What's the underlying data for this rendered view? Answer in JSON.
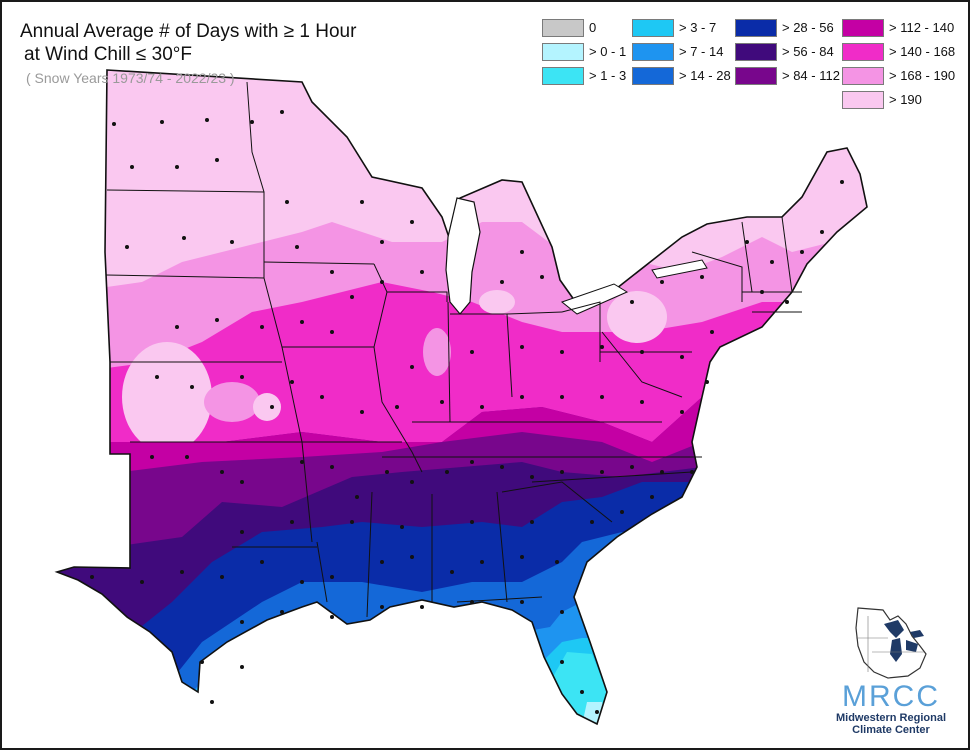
{
  "title": {
    "line1": "Annual Average # of Days with ≥ 1 Hour",
    "line2": "at Wind Chill ≤ 30°F",
    "subtitle": "( Snow Years 1973/74 - 2022/23 )"
  },
  "legend": {
    "items": [
      {
        "label": "0",
        "color": "#c8c8c8"
      },
      {
        "label": "> 0 - 1",
        "color": "#b4f4ff"
      },
      {
        "label": "> 1 - 3",
        "color": "#3ce4f4"
      },
      {
        "label": "> 3 - 7",
        "color": "#1ec8f4"
      },
      {
        "label": "> 7 - 14",
        "color": "#1e94f0"
      },
      {
        "label": "> 14 - 28",
        "color": "#1468d8"
      },
      {
        "label": "> 28 - 56",
        "color": "#0a2ca8"
      },
      {
        "label": "> 56 - 84",
        "color": "#400a7c"
      },
      {
        "label": "> 84 - 112",
        "color": "#78068c"
      },
      {
        "label": "> 112 - 140",
        "color": "#c400a4"
      },
      {
        "label": "> 140 - 168",
        "color": "#f02cc8"
      },
      {
        "label": "> 168 - 190",
        "color": "#f494e4"
      },
      {
        "label": "> 190",
        "color": "#fac8f0"
      }
    ]
  },
  "logo": {
    "acronym": "MRCC",
    "line1": "Midwestern Regional",
    "line2": "Climate Center"
  }
}
